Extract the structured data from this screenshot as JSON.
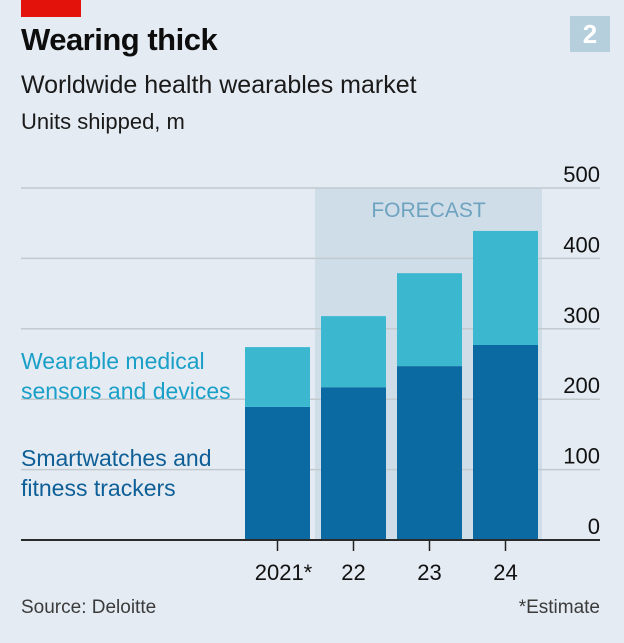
{
  "header": {
    "title": "Wearing thick",
    "subtitle": "Worldwide health wearables market",
    "units": "Units shipped, m",
    "chart_number": "2"
  },
  "footer": {
    "source": "Source: Deloitte",
    "note": "*Estimate"
  },
  "colors": {
    "brand_red": "#e3120b",
    "smartwatches": "#0a6aa1",
    "medical": "#3bb8d0",
    "forecast_band": "#cfdde8",
    "forecast_text": "#6ea3c0"
  },
  "chart_data": {
    "type": "bar",
    "stacked": true,
    "title": "Wearing thick",
    "subtitle": "Worldwide health wearables market",
    "ylabel": "Units shipped, m",
    "xlabel": "",
    "categories": [
      "2021*",
      "22",
      "23",
      "24"
    ],
    "series": [
      {
        "name": "Smartwatches and fitness trackers",
        "legend_label": [
          "Smartwatches and",
          "fitness trackers"
        ],
        "values": [
          189,
          217,
          247,
          277
        ]
      },
      {
        "name": "Wearable medical sensors and devices",
        "legend_label": [
          "Wearable medical",
          "sensors and devices"
        ],
        "values": [
          85,
          101,
          132,
          162
        ]
      }
    ],
    "totals": [
      274,
      318,
      379,
      439
    ],
    "ylim": [
      0,
      500
    ],
    "yticks": [
      0,
      100,
      200,
      300,
      400,
      500
    ],
    "ytick_labels": [
      "0",
      "100",
      "200",
      "300",
      "400",
      "500"
    ],
    "y_axis_position": "right",
    "grid": true,
    "annotations": [
      {
        "text": "FORECAST",
        "applies_to": [
          "22",
          "23",
          "24"
        ]
      }
    ],
    "legend_placement": "left"
  }
}
